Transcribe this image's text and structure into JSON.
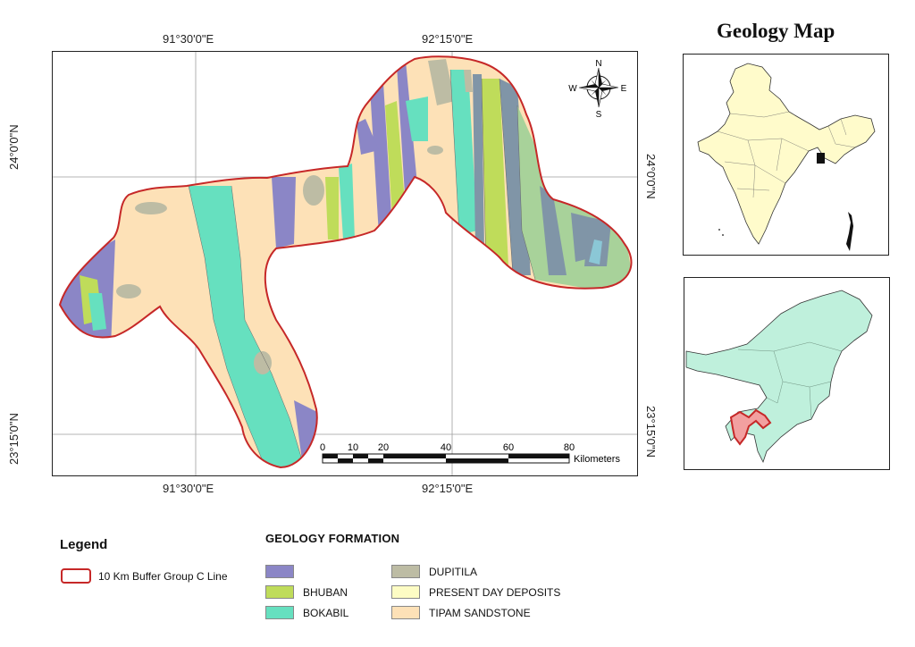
{
  "title": "Geology Map",
  "coordinates": {
    "top_left": "91°30'0\"E",
    "top_right": "92°15'0\"E",
    "bottom_left": "91°30'0\"E",
    "bottom_right": "92°15'0\"E",
    "left_upper": "24°0'0\"N",
    "left_lower": "23°15'0\"N",
    "right_upper": "24°0'0\"N",
    "right_lower": "23°15'0\"N"
  },
  "scale_bar": {
    "labels": [
      "0",
      "10",
      "20",
      "40",
      "60",
      "80"
    ],
    "unit": "Kilometers"
  },
  "north_arrow": {
    "n": "N",
    "s": "S",
    "e": "E",
    "w": "W"
  },
  "legend": {
    "title": "Legend",
    "buffer_label": "10 Km Buffer Group C Line",
    "buffer_color": "#c62828",
    "formation_title": "GEOLOGY FORMATION",
    "formations": [
      {
        "label": "",
        "color": "#8b86c6"
      },
      {
        "label": "BHUBAN",
        "color": "#bfdc5a"
      },
      {
        "label": "BOKABIL",
        "color": "#66e0bf"
      },
      {
        "label": "DUPITILA",
        "color": "#bdbca4"
      },
      {
        "label": "PRESENT DAY DEPOSITS",
        "color": "#fdfcc4"
      },
      {
        "label": "TIPAM SANDSTONE",
        "color": "#fde1b7"
      }
    ]
  },
  "colors": {
    "india_fill": "#fffbcb",
    "northeast_fill": "#bff0dc",
    "extra_sage": "#a8d29a",
    "extra_slate": "#8095a7"
  }
}
